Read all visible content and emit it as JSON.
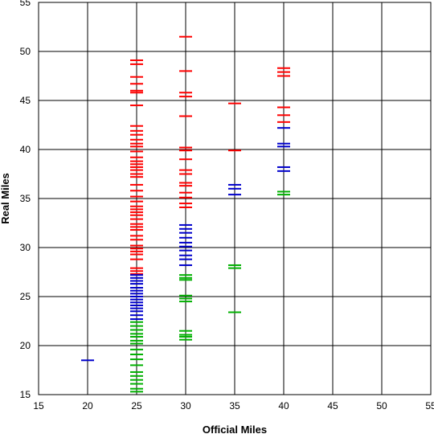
{
  "chart_data": {
    "type": "scatter",
    "marker": "dash",
    "xlabel": "Official Miles",
    "ylabel": "Real Miles",
    "xlim": [
      15,
      55
    ],
    "ylim": [
      15,
      55
    ],
    "xticks": [
      15,
      20,
      25,
      30,
      35,
      40,
      45,
      50,
      55
    ],
    "yticks": [
      15,
      20,
      25,
      30,
      35,
      40,
      45,
      50,
      55
    ],
    "grid": true,
    "series": [
      {
        "color": "#ff0000",
        "points": [
          [
            25,
            49.1
          ],
          [
            25,
            48.7
          ],
          [
            25,
            47.4
          ],
          [
            25,
            46.7
          ],
          [
            25,
            46.0
          ],
          [
            25,
            45.8
          ],
          [
            25,
            44.5
          ],
          [
            25,
            42.4
          ],
          [
            25,
            41.9
          ],
          [
            25,
            41.5
          ],
          [
            25,
            41.0
          ],
          [
            25,
            40.6
          ],
          [
            25,
            40.3
          ],
          [
            25,
            39.8
          ],
          [
            25,
            39.2
          ],
          [
            25,
            38.8
          ],
          [
            25,
            38.5
          ],
          [
            25,
            38.2
          ],
          [
            25,
            37.9
          ],
          [
            25,
            37.5
          ],
          [
            25,
            37.2
          ],
          [
            25,
            36.4
          ],
          [
            25,
            35.8
          ],
          [
            25,
            35.2
          ],
          [
            25,
            34.7
          ],
          [
            25,
            34.2
          ],
          [
            25,
            33.9
          ],
          [
            25,
            33.6
          ],
          [
            25,
            33.3
          ],
          [
            25,
            32.9
          ],
          [
            25,
            32.4
          ],
          [
            25,
            32.1
          ],
          [
            25,
            31.8
          ],
          [
            25,
            31.2
          ],
          [
            25,
            30.8
          ],
          [
            25,
            30.2
          ],
          [
            25,
            29.9
          ],
          [
            25,
            29.6
          ],
          [
            25,
            29.3
          ],
          [
            25,
            28.8
          ],
          [
            25,
            27.9
          ],
          [
            25,
            27.6
          ],
          [
            25,
            27.3
          ],
          [
            30,
            51.5
          ],
          [
            30,
            48.0
          ],
          [
            30,
            45.8
          ],
          [
            30,
            45.4
          ],
          [
            30,
            43.4
          ],
          [
            30,
            40.2
          ],
          [
            30,
            39.9
          ],
          [
            30,
            39.0
          ],
          [
            30,
            37.9
          ],
          [
            30,
            37.5
          ],
          [
            30,
            36.6
          ],
          [
            30,
            36.3
          ],
          [
            30,
            35.6
          ],
          [
            30,
            35.1
          ],
          [
            30,
            34.5
          ],
          [
            30,
            34.1
          ],
          [
            35,
            44.7
          ],
          [
            35,
            39.9
          ],
          [
            40,
            48.3
          ],
          [
            40,
            47.9
          ],
          [
            40,
            47.5
          ],
          [
            40,
            44.3
          ],
          [
            40,
            43.5
          ],
          [
            40,
            42.8
          ]
        ]
      },
      {
        "color": "#0000cc",
        "points": [
          [
            20,
            18.5
          ],
          [
            25,
            27.2
          ],
          [
            25,
            26.9
          ],
          [
            25,
            26.6
          ],
          [
            25,
            26.3
          ],
          [
            25,
            25.9
          ],
          [
            25,
            25.6
          ],
          [
            25,
            25.3
          ],
          [
            25,
            25.0
          ],
          [
            25,
            24.7
          ],
          [
            25,
            24.4
          ],
          [
            25,
            24.1
          ],
          [
            25,
            23.8
          ],
          [
            25,
            23.5
          ],
          [
            25,
            23.1
          ],
          [
            25,
            22.7
          ],
          [
            30,
            32.3
          ],
          [
            30,
            31.9
          ],
          [
            30,
            31.5
          ],
          [
            30,
            31.0
          ],
          [
            30,
            30.5
          ],
          [
            30,
            30.1
          ],
          [
            30,
            29.7
          ],
          [
            30,
            29.2
          ],
          [
            30,
            28.8
          ],
          [
            30,
            28.2
          ],
          [
            35,
            36.4
          ],
          [
            35,
            36.0
          ],
          [
            35,
            35.4
          ],
          [
            40,
            42.2
          ],
          [
            40,
            40.6
          ],
          [
            40,
            40.3
          ],
          [
            40,
            38.2
          ],
          [
            40,
            37.8
          ]
        ]
      },
      {
        "color": "#00b000",
        "points": [
          [
            25,
            22.4
          ],
          [
            25,
            22.0
          ],
          [
            25,
            21.6
          ],
          [
            25,
            21.2
          ],
          [
            25,
            20.9
          ],
          [
            25,
            20.5
          ],
          [
            25,
            20.2
          ],
          [
            25,
            19.6
          ],
          [
            25,
            19.1
          ],
          [
            25,
            18.6
          ],
          [
            25,
            18.0
          ],
          [
            25,
            17.3
          ],
          [
            25,
            16.9
          ],
          [
            25,
            16.5
          ],
          [
            25,
            16.1
          ],
          [
            25,
            15.6
          ],
          [
            25,
            15.3
          ],
          [
            30,
            27.2
          ],
          [
            30,
            26.9
          ],
          [
            30,
            26.7
          ],
          [
            30,
            25.1
          ],
          [
            30,
            24.8
          ],
          [
            30,
            24.5
          ],
          [
            30,
            21.5
          ],
          [
            30,
            21.1
          ],
          [
            30,
            20.9
          ],
          [
            30,
            20.6
          ],
          [
            35,
            28.2
          ],
          [
            35,
            27.9
          ],
          [
            35,
            23.4
          ],
          [
            40,
            35.7
          ],
          [
            40,
            35.4
          ]
        ]
      }
    ]
  }
}
